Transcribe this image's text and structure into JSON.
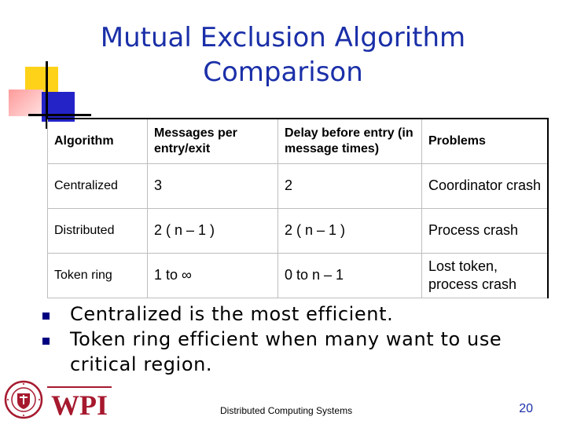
{
  "slide": {
    "title_line1": "Mutual Exclusion Algorithm",
    "title_line2": "Comparison",
    "table": {
      "headers": [
        "Algorithm",
        "Messages per entry/exit",
        "Delay before entry (in message times)",
        "Problems"
      ],
      "rows": [
        [
          "Centralized",
          "3",
          "2",
          "Coordinator crash"
        ],
        [
          "Distributed",
          "2 ( n – 1 )",
          "2 ( n – 1 )",
          "Process crash"
        ],
        [
          "Token ring",
          "1 to ∞",
          "0 to n – 1",
          "Lost token, process crash"
        ]
      ]
    },
    "bullets": [
      "Centralized is the most efficient.",
      "Token ring efficient when many want to use critical region."
    ],
    "footer": "Distributed Computing Systems",
    "page_number": "20",
    "logo_text": "WPI",
    "colors": {
      "title": "#1a2fa8",
      "bullet": "#000080",
      "logo": "#a6192e",
      "accent_yellow": "#ffd21a",
      "accent_blue": "#2323c8"
    },
    "icons": [
      "bullet-square-icon",
      "wpi-seal-icon"
    ]
  }
}
